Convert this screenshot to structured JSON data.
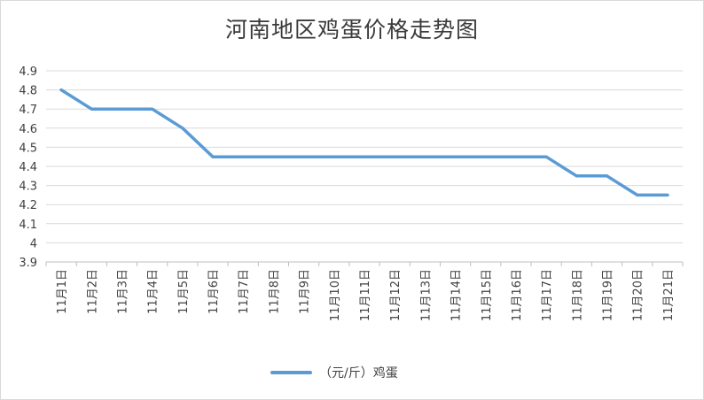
{
  "chart_data": {
    "type": "line",
    "title": "河南地区鸡蛋价格走势图",
    "xlabel": "",
    "ylabel": "",
    "categories": [
      "11月1日",
      "11月2日",
      "11月3日",
      "11月4日",
      "11月5日",
      "11月6日",
      "11月7日",
      "11月8日",
      "11月9日",
      "11月10日",
      "11月11日",
      "11月12日",
      "11月13日",
      "11月14日",
      "11月15日",
      "11月16日",
      "11月17日",
      "11月18日",
      "11月19日",
      "11月20日",
      "11月21日"
    ],
    "series": [
      {
        "name": "（元/斤）鸡蛋",
        "color": "#5b9bd5",
        "values": [
          4.8,
          4.7,
          4.7,
          4.7,
          4.6,
          4.45,
          4.45,
          4.45,
          4.45,
          4.45,
          4.45,
          4.45,
          4.45,
          4.45,
          4.45,
          4.45,
          4.45,
          4.35,
          4.35,
          4.25,
          4.25
        ]
      }
    ],
    "ylim": [
      3.9,
      4.9
    ],
    "yticks": [
      "4.9",
      "4.8",
      "4.7",
      "4.6",
      "4.5",
      "4.4",
      "4.3",
      "4.2",
      "4.1",
      "4",
      "3.9"
    ],
    "grid": true,
    "legend": "bottom"
  }
}
